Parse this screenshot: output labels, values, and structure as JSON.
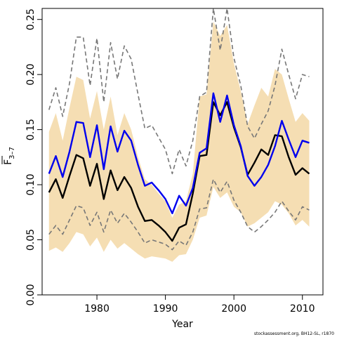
{
  "chart_data": {
    "type": "line",
    "xlabel": "Year",
    "ylabel_main": "F",
    "ylabel_sub": "3–7",
    "credit": "stockassessment.org, BH12-SL, r1870",
    "xlim": [
      1972,
      2013
    ],
    "ylim": [
      0,
      0.26
    ],
    "x_ticks": [
      1980,
      1990,
      2000,
      2010
    ],
    "x_tick_labels": [
      "1980",
      "1990",
      "2000",
      "2010"
    ],
    "y_ticks": [
      0,
      0.05,
      0.1,
      0.15,
      0.2,
      0.25
    ],
    "y_tick_labels": [
      "0.00",
      "0.05",
      "0.10",
      "0.15",
      "0.20",
      "0.25"
    ],
    "x": [
      1973,
      1974,
      1975,
      1976,
      1977,
      1978,
      1979,
      1980,
      1981,
      1982,
      1983,
      1984,
      1985,
      1986,
      1987,
      1988,
      1989,
      1990,
      1991,
      1992,
      1993,
      1994,
      1995,
      1996,
      1997,
      1998,
      1999,
      2000,
      2001,
      2002,
      2003,
      2004,
      2005,
      2006,
      2007,
      2008,
      2009,
      2010,
      2011
    ],
    "band": {
      "color": "#f5deb3",
      "upper": [
        0.148,
        0.165,
        0.14,
        0.17,
        0.198,
        0.195,
        0.16,
        0.185,
        0.15,
        0.18,
        0.145,
        0.165,
        0.15,
        0.125,
        0.105,
        0.1,
        0.092,
        0.085,
        0.07,
        0.082,
        0.085,
        0.11,
        0.18,
        0.182,
        0.248,
        0.235,
        0.245,
        0.21,
        0.185,
        0.155,
        0.172,
        0.188,
        0.18,
        0.205,
        0.2,
        0.178,
        0.157,
        0.165,
        0.158
      ],
      "lower": [
        0.04,
        0.043,
        0.039,
        0.047,
        0.057,
        0.055,
        0.044,
        0.052,
        0.039,
        0.05,
        0.042,
        0.047,
        0.042,
        0.037,
        0.033,
        0.035,
        0.034,
        0.033,
        0.03,
        0.036,
        0.037,
        0.05,
        0.07,
        0.072,
        0.098,
        0.088,
        0.093,
        0.08,
        0.075,
        0.062,
        0.065,
        0.07,
        0.075,
        0.085,
        0.082,
        0.074,
        0.063,
        0.068,
        0.062
      ]
    },
    "series": [
      {
        "color": "#000000",
        "style": "solid",
        "values": [
          0.093,
          0.105,
          0.088,
          0.108,
          0.127,
          0.124,
          0.099,
          0.119,
          0.087,
          0.113,
          0.095,
          0.107,
          0.097,
          0.08,
          0.067,
          0.068,
          0.063,
          0.057,
          0.049,
          0.061,
          0.064,
          0.092,
          0.126,
          0.127,
          0.175,
          0.163,
          0.175,
          0.152,
          0.134,
          0.109,
          0.12,
          0.132,
          0.127,
          0.145,
          0.144,
          0.125,
          0.109,
          0.115,
          0.11
        ]
      },
      {
        "color": "#0000ee",
        "style": "solid",
        "values": [
          0.11,
          0.126,
          0.107,
          0.13,
          0.157,
          0.156,
          0.125,
          0.154,
          0.114,
          0.153,
          0.13,
          0.149,
          0.14,
          0.118,
          0.099,
          0.102,
          0.095,
          0.087,
          0.074,
          0.09,
          0.081,
          0.097,
          0.129,
          0.133,
          0.183,
          0.157,
          0.181,
          0.154,
          0.135,
          0.108,
          0.099,
          0.107,
          0.118,
          0.135,
          0.158,
          0.141,
          0.125,
          0.14,
          0.138
        ]
      },
      {
        "color": "#777777",
        "style": "dashed",
        "values": [
          0.055,
          0.063,
          0.055,
          0.068,
          0.081,
          0.079,
          0.063,
          0.075,
          0.057,
          0.077,
          0.065,
          0.074,
          0.066,
          0.057,
          0.047,
          0.05,
          0.048,
          0.046,
          0.041,
          0.049,
          0.045,
          0.057,
          0.078,
          0.079,
          0.105,
          0.093,
          0.103,
          0.086,
          0.075,
          0.062,
          0.057,
          0.062,
          0.068,
          0.075,
          0.085,
          0.076,
          0.068,
          0.08,
          0.077
        ]
      },
      {
        "color": "#777777",
        "style": "dashed",
        "values": [
          0.168,
          0.188,
          0.162,
          0.192,
          0.234,
          0.234,
          0.19,
          0.233,
          0.175,
          0.229,
          0.196,
          0.226,
          0.214,
          0.182,
          0.151,
          0.154,
          0.143,
          0.132,
          0.11,
          0.132,
          0.117,
          0.14,
          0.18,
          0.184,
          0.26,
          0.222,
          0.26,
          0.215,
          0.19,
          0.153,
          0.142,
          0.155,
          0.167,
          0.19,
          0.223,
          0.2,
          0.178,
          0.2,
          0.198
        ]
      }
    ]
  }
}
